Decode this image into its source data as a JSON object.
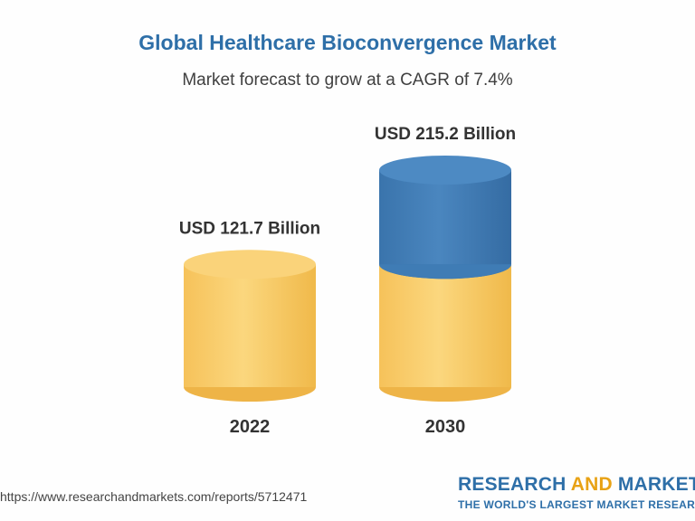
{
  "header": {
    "title": "Global Healthcare Bioconvergence Market",
    "subtitle": "Market forecast to grow at a CAGR of 7.4%"
  },
  "chart_data": {
    "type": "bar",
    "categories": [
      "2022",
      "2030"
    ],
    "values": [
      121.7,
      215.2
    ],
    "data_labels": [
      "USD 121.7 Billion",
      "USD 215.2 Billion"
    ],
    "title": "Global Healthcare Bioconvergence Market",
    "subtitle": "Market forecast to grow at a CAGR of 7.4%",
    "legend": "none",
    "grid": false,
    "colors": {
      "base": "#f7c95e",
      "growth": "#3f7cb5"
    }
  },
  "footer": {
    "url": "https://www.researchandmarkets.com/reports/5712471",
    "brand_part1": "RESEARCH ",
    "brand_part2": "AND",
    "brand_part3": " MARKETS",
    "tagline": "THE WORLD'S LARGEST MARKET RESEARCH STORE"
  }
}
